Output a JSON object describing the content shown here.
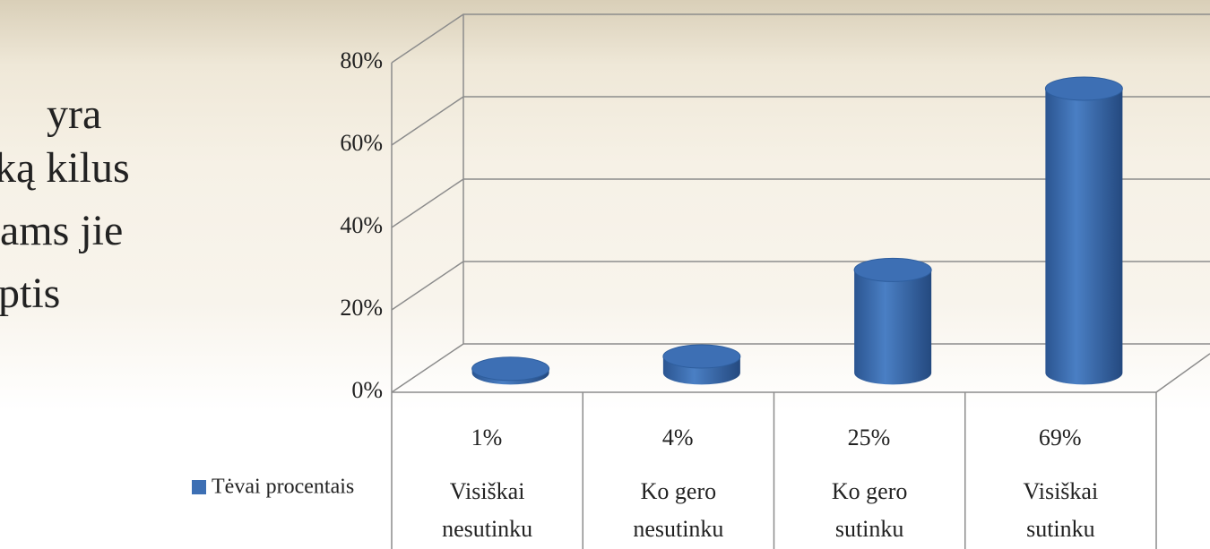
{
  "chart_data": {
    "type": "bar",
    "annotations": [
      "yra",
      "ką kilus",
      "ams jie",
      "ptis"
    ],
    "categories": [
      "Visiškai nesutinku",
      "Ko gero nesutinku",
      "Ko gero sutinku",
      "Visiškai sutinku"
    ],
    "series": [
      {
        "name": "Tėvai procentais",
        "color": "#3d6fb4",
        "values": [
          1,
          4,
          25,
          69
        ],
        "value_labels": [
          "1%",
          "4%",
          "25%",
          "69%"
        ]
      }
    ],
    "ylim": [
      0,
      80
    ],
    "yticks": [
      {
        "value": 0,
        "label": "0%"
      },
      {
        "value": 20,
        "label": "20%"
      },
      {
        "value": 40,
        "label": "40%"
      },
      {
        "value": 60,
        "label": "60%"
      },
      {
        "value": 80,
        "label": "80%"
      }
    ],
    "grid": true
  }
}
